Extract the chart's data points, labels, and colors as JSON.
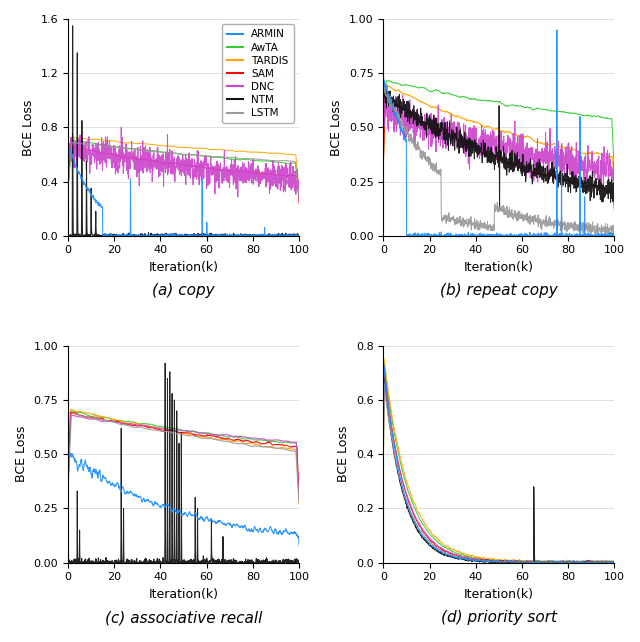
{
  "models": [
    "ARMIN",
    "AwTA",
    "TARDIS",
    "SAM",
    "DNC",
    "NTM",
    "LSTM"
  ],
  "colors": {
    "ARMIN": "#1E90FF",
    "AwTA": "#32CD32",
    "TARDIS": "#FFA500",
    "SAM": "#FF0000",
    "DNC": "#CC44CC",
    "NTM": "#111111",
    "LSTM": "#999999"
  },
  "subplot_labels": [
    "(a) copy",
    "(b) repeat copy",
    "(c) associative recall",
    "(d) priority sort"
  ],
  "panels": {
    "copy": {
      "ylim": [
        0,
        1.6
      ],
      "yticks": [
        0,
        0.4,
        0.8,
        1.2,
        1.6
      ],
      "has_legend": true
    },
    "repeat copy": {
      "ylim": [
        0,
        1.0
      ],
      "yticks": [
        0,
        0.25,
        0.5,
        0.75,
        1.0
      ],
      "has_legend": false
    },
    "associative recall": {
      "ylim": [
        0,
        1.0
      ],
      "yticks": [
        0,
        0.25,
        0.5,
        0.75,
        1.0
      ],
      "has_legend": false
    },
    "priority sort": {
      "ylim": [
        0,
        0.8
      ],
      "yticks": [
        0,
        0.2,
        0.4,
        0.6,
        0.8
      ],
      "has_legend": false
    }
  }
}
